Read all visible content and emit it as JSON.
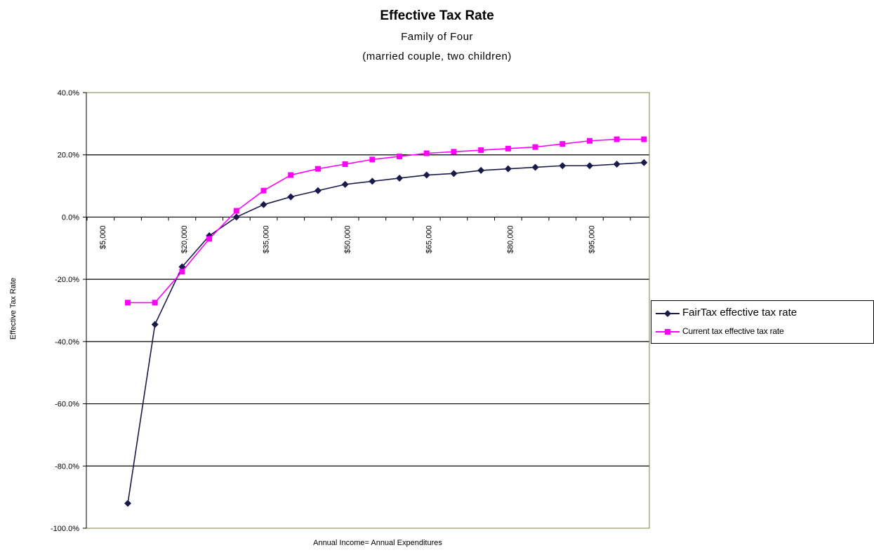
{
  "chart_data": {
    "type": "line",
    "title": "Effective Tax Rate",
    "subtitle": [
      "Family of Four",
      "(married couple, two children)"
    ],
    "xlabel": "Annual Income= Annual Expenditures",
    "ylabel": "Effective Tax Rate",
    "ylim": [
      -100,
      40
    ],
    "yticks": [
      40,
      20,
      0,
      -20,
      -40,
      -60,
      -80,
      -100
    ],
    "ytick_labels": [
      "40.0%",
      "20.0%",
      "0.0%",
      "-20.0%",
      "-40.0%",
      "-60.0%",
      "-80.0%",
      "-100.0%"
    ],
    "x": [
      5000,
      10000,
      15000,
      20000,
      25000,
      30000,
      35000,
      40000,
      45000,
      50000,
      55000,
      60000,
      65000,
      70000,
      75000,
      80000,
      85000,
      90000,
      95000,
      100000,
      105000
    ],
    "xtick_values": [
      5000,
      20000,
      35000,
      50000,
      65000,
      80000,
      95000
    ],
    "xtick_labels": [
      "$5,000",
      "$20,000",
      "$35,000",
      "$50,000",
      "$65,000",
      "$80,000",
      "$95,000"
    ],
    "grid": "horizontal",
    "legend_position": "right",
    "series": [
      {
        "name": "FairTax effective tax rate",
        "color": "#1a1a4a",
        "marker": "diamond",
        "values": [
          -92,
          -34.5,
          -16,
          -6,
          0,
          4,
          6.5,
          8.5,
          10.5,
          11.5,
          12.5,
          13.5,
          14,
          15,
          15.5,
          16,
          16.5,
          16.5,
          17,
          17.5,
          null
        ]
      },
      {
        "name": "Current tax effective tax rate",
        "color": "#ff00ff",
        "marker": "square",
        "values": [
          -27.5,
          -27.5,
          -17.5,
          -7,
          2,
          8.5,
          13.5,
          15.5,
          17,
          18.5,
          19.5,
          20.5,
          21,
          21.5,
          22,
          22.5,
          23.5,
          24.5,
          25,
          25,
          null
        ]
      }
    ]
  }
}
